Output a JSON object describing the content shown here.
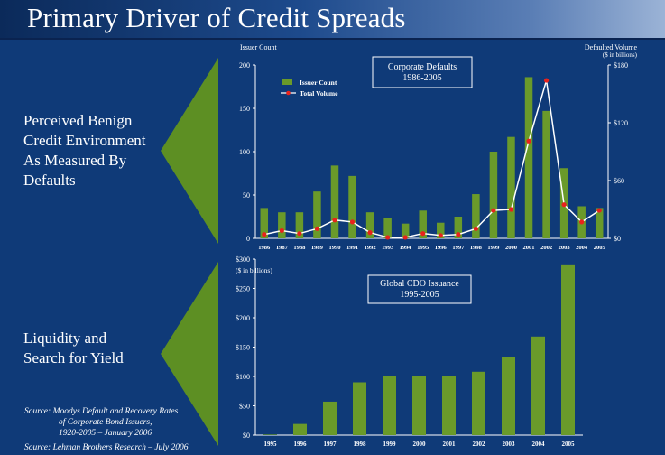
{
  "title": "Primary Driver of Credit Spreads",
  "colors": {
    "background": "#0f3a78",
    "bar": "#6a9a2a",
    "line": "#ffffff",
    "marker": "#e8231c",
    "arrow": "#5d8f23"
  },
  "side_labels": {
    "top": [
      "Perceived Benign",
      "Credit Environment",
      "As Measured By",
      "Defaults"
    ],
    "bottom": [
      "Liquidity and",
      "Search for Yield"
    ]
  },
  "sources": {
    "moodys": [
      "Source:  Moodys Default and Recovery Rates",
      "of  Corporate Bond Issuers,",
      "1920-2005 – January 2006"
    ],
    "lehman": "Source: Lehman Brothers Research – July 2006"
  },
  "chart_data": [
    {
      "type": "bar",
      "title": "Corporate Defaults",
      "subtitle": "1986-2005",
      "ylabel": "Issuer Count",
      "ylabel_right": [
        "Defaulted Volume",
        "($ in billions)"
      ],
      "categories": [
        "1986",
        "1987",
        "1988",
        "1989",
        "1990",
        "1991",
        "1992",
        "1993",
        "1994",
        "1995",
        "1996",
        "1997",
        "1998",
        "1999",
        "2000",
        "2001",
        "2002",
        "2003",
        "2004",
        "2005"
      ],
      "series": [
        {
          "name": "Issuer Count",
          "type": "bar",
          "axis": "left",
          "values": [
            35,
            30,
            30,
            54,
            84,
            72,
            30,
            23,
            17,
            32,
            18,
            25,
            51,
            100,
            117,
            186,
            147,
            81,
            37,
            35
          ]
        },
        {
          "name": "Total Volume",
          "type": "line",
          "axis": "right",
          "values": [
            4,
            8,
            5,
            10,
            19,
            17,
            6,
            1,
            1,
            5,
            3,
            4,
            10,
            29,
            30,
            101,
            164,
            35,
            17,
            29
          ]
        }
      ],
      "ylim": [
        0,
        200
      ],
      "yticks": [
        "0",
        "50",
        "100",
        "150",
        "200"
      ],
      "ylim_right": [
        0,
        180
      ],
      "yticks_right": [
        "$0",
        "$60",
        "$120",
        "$180"
      ],
      "legend": "top-left"
    },
    {
      "type": "bar",
      "title": "Global CDO Issuance",
      "subtitle": "1995-2005",
      "ylabel": "($ in billions)",
      "categories": [
        "1995",
        "1996",
        "1997",
        "1998",
        "1999",
        "2000",
        "2001",
        "2002",
        "2003",
        "2004",
        "2005"
      ],
      "values": [
        1,
        19,
        57,
        90,
        101,
        101,
        100,
        108,
        133,
        168,
        291
      ],
      "ylim": [
        0,
        300
      ],
      "yticks": [
        "$0",
        "$50",
        "$100",
        "$150",
        "$200",
        "$250",
        "$300"
      ]
    }
  ]
}
